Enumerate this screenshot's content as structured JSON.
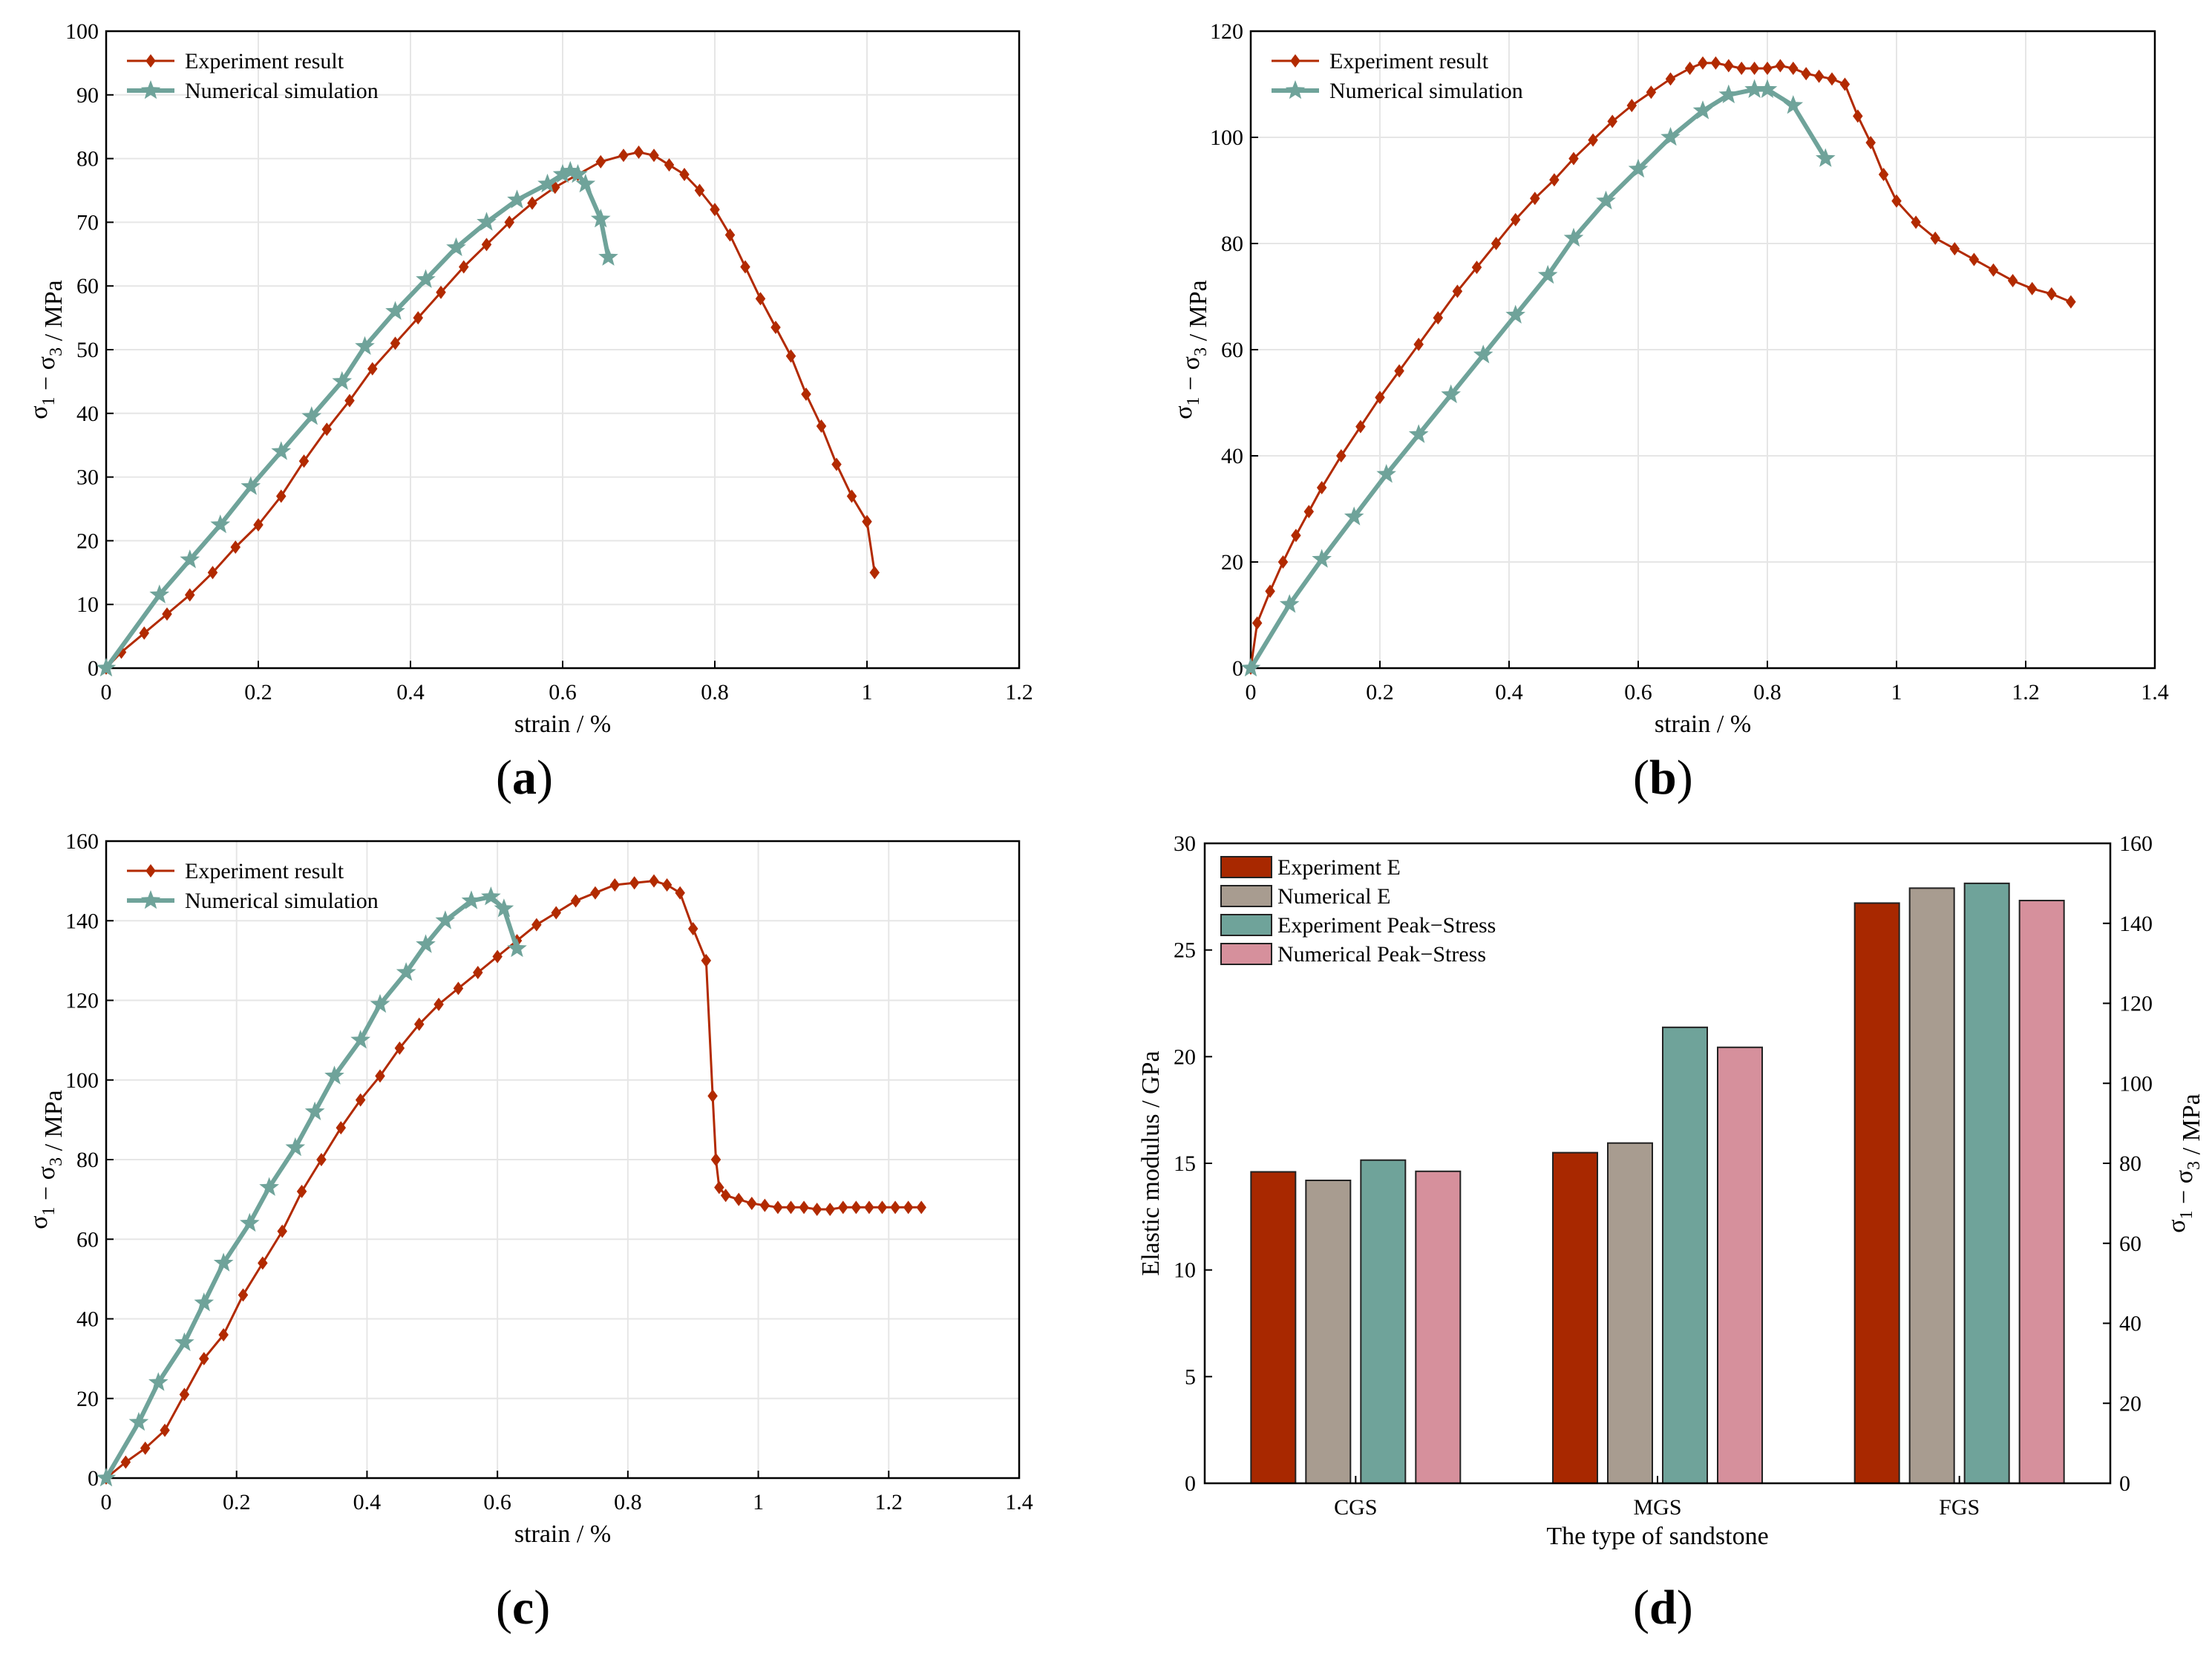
{
  "colors": {
    "experiment": "#b22a00",
    "simulation": "#6fa39a",
    "bar_exp_e": "#a82800",
    "bar_num_e": "#a89c90",
    "bar_exp_peak": "#6fa39a",
    "bar_num_peak": "#d6909c",
    "grid": "#e6e6e6"
  },
  "panels": [
    {
      "caption_letter": "a"
    },
    {
      "caption_letter": "b"
    },
    {
      "caption_letter": "c"
    },
    {
      "caption_letter": "d"
    }
  ],
  "chart_data": [
    {
      "type": "line",
      "panel": "a",
      "xlabel": "strain / %",
      "ylabel": "σ1 − σ3 / MPa",
      "xlim": [
        0,
        1.2
      ],
      "ylim": [
        0,
        100
      ],
      "xticks": [
        "0",
        "0.2",
        "0.4",
        "0.6",
        "0.8",
        "1",
        "1.2"
      ],
      "yticks": [
        "0",
        "10",
        "20",
        "30",
        "40",
        "50",
        "60",
        "70",
        "80",
        "90",
        "100"
      ],
      "grid": true,
      "legend": "top-left",
      "series": [
        {
          "name": "Experiment result",
          "marker": "diamond",
          "x": [
            0,
            0.02,
            0.05,
            0.08,
            0.11,
            0.14,
            0.17,
            0.2,
            0.23,
            0.26,
            0.29,
            0.32,
            0.35,
            0.38,
            0.41,
            0.44,
            0.47,
            0.5,
            0.53,
            0.56,
            0.59,
            0.62,
            0.65,
            0.68,
            0.7,
            0.72,
            0.74,
            0.76,
            0.78,
            0.8,
            0.82,
            0.84,
            0.86,
            0.88,
            0.9,
            0.92,
            0.94,
            0.96,
            0.98,
            1.0,
            1.01
          ],
          "y": [
            0,
            2.5,
            5.5,
            8.5,
            11.5,
            15,
            19,
            22.5,
            27,
            32.5,
            37.5,
            42,
            47,
            51,
            55,
            59,
            63,
            66.5,
            70,
            73,
            75.5,
            77.5,
            79.5,
            80.5,
            81,
            80.5,
            79,
            77.5,
            75,
            72,
            68,
            63,
            58,
            53.5,
            49,
            43,
            38,
            32,
            27,
            23,
            15
          ]
        },
        {
          "name": "Numerical simulation",
          "marker": "star",
          "x": [
            0,
            0.07,
            0.11,
            0.15,
            0.19,
            0.23,
            0.27,
            0.31,
            0.34,
            0.38,
            0.42,
            0.46,
            0.5,
            0.54,
            0.58,
            0.6,
            0.61,
            0.62,
            0.63,
            0.65,
            0.66
          ],
          "y": [
            0,
            11.5,
            17,
            22.5,
            28.5,
            34,
            39.5,
            45,
            50.5,
            56,
            61,
            66,
            70,
            73.5,
            76,
            77.5,
            78,
            77.5,
            76,
            70.5,
            64.5
          ]
        }
      ]
    },
    {
      "type": "line",
      "panel": "b",
      "xlabel": "strain / %",
      "ylabel": "σ1 − σ3 / MPa",
      "xlim": [
        0,
        1.4
      ],
      "ylim": [
        0,
        120
      ],
      "xticks": [
        "0",
        "0.2",
        "0.4",
        "0.6",
        "0.8",
        "1",
        "1.2",
        "1.4"
      ],
      "yticks": [
        "0",
        "20",
        "40",
        "60",
        "80",
        "100",
        "120"
      ],
      "grid": true,
      "legend": "top-left",
      "series": [
        {
          "name": "Experiment result",
          "marker": "diamond",
          "x": [
            0,
            0.01,
            0.03,
            0.05,
            0.07,
            0.09,
            0.11,
            0.14,
            0.17,
            0.2,
            0.23,
            0.26,
            0.29,
            0.32,
            0.35,
            0.38,
            0.41,
            0.44,
            0.47,
            0.5,
            0.53,
            0.56,
            0.59,
            0.62,
            0.65,
            0.68,
            0.7,
            0.72,
            0.74,
            0.76,
            0.78,
            0.8,
            0.82,
            0.84,
            0.86,
            0.88,
            0.9,
            0.92,
            0.94,
            0.96,
            0.98,
            1.0,
            1.03,
            1.06,
            1.09,
            1.12,
            1.15,
            1.18,
            1.21,
            1.24,
            1.27
          ],
          "y": [
            0,
            8.5,
            14.5,
            20,
            25,
            29.5,
            34,
            40,
            45.5,
            51,
            56,
            61,
            66,
            71,
            75.5,
            80,
            84.5,
            88.5,
            92,
            96,
            99.5,
            103,
            106,
            108.5,
            111,
            113,
            114,
            114,
            113.5,
            113,
            113,
            113,
            113.5,
            113,
            112,
            111.5,
            111,
            110,
            104,
            99,
            93,
            88,
            84,
            81,
            79,
            77,
            75,
            73,
            71.5,
            70.5,
            69
          ]
        },
        {
          "name": "Numerical simulation",
          "marker": "star",
          "x": [
            0,
            0.06,
            0.11,
            0.16,
            0.21,
            0.26,
            0.31,
            0.36,
            0.41,
            0.46,
            0.5,
            0.55,
            0.6,
            0.65,
            0.7,
            0.74,
            0.78,
            0.8,
            0.84,
            0.89
          ],
          "y": [
            0,
            12,
            20.5,
            28.5,
            36.5,
            44,
            51.5,
            59,
            66.5,
            74,
            81,
            88,
            94,
            100,
            105,
            108,
            109,
            109,
            106,
            96
          ]
        }
      ]
    },
    {
      "type": "line",
      "panel": "c",
      "xlabel": "strain / %",
      "ylabel": "σ1 − σ3 / MPa",
      "xlim": [
        0,
        1.4
      ],
      "ylim": [
        0,
        160
      ],
      "xticks": [
        "0",
        "0.2",
        "0.4",
        "0.6",
        "0.8",
        "1",
        "1.2",
        "1.4"
      ],
      "yticks": [
        "0",
        "20",
        "40",
        "60",
        "80",
        "100",
        "120",
        "140",
        "160"
      ],
      "grid": true,
      "legend": "top-left",
      "series": [
        {
          "name": "Experiment result",
          "marker": "diamond",
          "x": [
            0,
            0.03,
            0.06,
            0.09,
            0.12,
            0.15,
            0.18,
            0.21,
            0.24,
            0.27,
            0.3,
            0.33,
            0.36,
            0.39,
            0.42,
            0.45,
            0.48,
            0.51,
            0.54,
            0.57,
            0.6,
            0.63,
            0.66,
            0.69,
            0.72,
            0.75,
            0.78,
            0.81,
            0.84,
            0.86,
            0.88,
            0.9,
            0.92,
            0.93,
            0.935,
            0.94,
            0.95,
            0.97,
            0.99,
            1.01,
            1.03,
            1.05,
            1.07,
            1.09,
            1.11,
            1.13,
            1.15,
            1.17,
            1.19,
            1.21,
            1.23,
            1.25
          ],
          "y": [
            0,
            4,
            7.5,
            12,
            21,
            30,
            36,
            46,
            54,
            62,
            72,
            80,
            88,
            95,
            101,
            108,
            114,
            119,
            123,
            127,
            131,
            135,
            139,
            142,
            145,
            147,
            149,
            149.5,
            150,
            149,
            147,
            138,
            130,
            96,
            80,
            73,
            71,
            70,
            69,
            68.5,
            68,
            68,
            68,
            67.5,
            67.5,
            68,
            68,
            68,
            68,
            68,
            68,
            68
          ]
        },
        {
          "name": "Numerical simulation",
          "marker": "star",
          "x": [
            0,
            0.05,
            0.08,
            0.12,
            0.15,
            0.18,
            0.22,
            0.25,
            0.29,
            0.32,
            0.35,
            0.39,
            0.42,
            0.46,
            0.49,
            0.52,
            0.56,
            0.59,
            0.61,
            0.63
          ],
          "y": [
            0,
            14,
            24,
            34,
            44,
            54,
            64,
            73,
            83,
            92,
            101,
            110,
            119,
            127,
            134,
            140,
            145,
            146,
            143,
            133
          ]
        }
      ]
    },
    {
      "type": "bar",
      "panel": "d",
      "xlabel": "The type of sandstone",
      "ylabel": "Elastic modulus / GPa",
      "ylabel_right": "σ1 − σ3 / MPa",
      "categories": [
        "CGS",
        "MGS",
        "FGS"
      ],
      "ylim": [
        0,
        30
      ],
      "ylim_right": [
        0,
        160
      ],
      "yticks": [
        "0",
        "5",
        "10",
        "15",
        "20",
        "25",
        "30"
      ],
      "yticks_right": [
        "0",
        "20",
        "40",
        "60",
        "80",
        "100",
        "120",
        "140",
        "160"
      ],
      "legend": "top-left",
      "series": [
        {
          "name": "Experiment E",
          "axis": "left",
          "values": [
            14.6,
            15.5,
            27.2
          ]
        },
        {
          "name": "Numerical E",
          "axis": "left",
          "values": [
            14.2,
            15.95,
            27.9
          ]
        },
        {
          "name": "Experiment Peak−Stress",
          "axis": "right",
          "values": [
            80.8,
            114,
            150
          ]
        },
        {
          "name": "Numerical Peak−Stress",
          "axis": "right",
          "values": [
            78,
            109,
            145.7
          ]
        }
      ]
    }
  ]
}
